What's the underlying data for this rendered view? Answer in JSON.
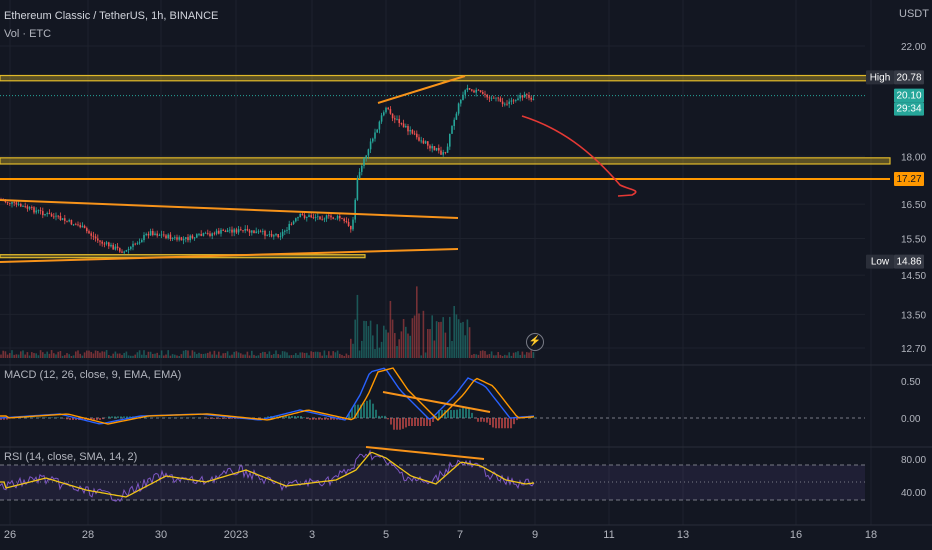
{
  "header": {
    "title": "Ethereum Classic / TetherUS, 1h, BINANCE",
    "volume_label": "Vol · ETC",
    "currency": "USDT"
  },
  "badges": {
    "high_label": "High",
    "high_value": "20.78",
    "last_value": "20.10",
    "countdown": "29:34",
    "level_value": "17.27",
    "low_label": "Low",
    "low_value": "14.86"
  },
  "colors": {
    "background": "#131722",
    "up": "#26a69a",
    "down": "#ef5350",
    "zone": "#e0b92a",
    "trendline": "#f7931a",
    "macd_line": "#2962ff",
    "signal_line": "#ff9800",
    "rsi_line": "#7e57c2",
    "rsi_ma": "#f0c419",
    "arrow": "#e53935"
  },
  "chart_data": [
    {
      "type": "candlestick",
      "title": "Ethereum Classic / TetherUS, 1h, BINANCE",
      "x_ticks": [
        "26",
        "28",
        "30",
        "2023",
        "3",
        "5",
        "7",
        "9",
        "11",
        "13",
        "16",
        "18"
      ],
      "y_ticks": [
        "22.00",
        "18.00",
        "16.50",
        "15.50",
        "14.50",
        "13.50",
        "12.70"
      ],
      "y_scale": "log",
      "high": 20.78,
      "last": 20.1,
      "low": 14.86,
      "horizontal_levels": [
        17.27
      ],
      "zones": [
        [
          20.65,
          20.85
        ],
        [
          17.75,
          17.95
        ],
        [
          14.98,
          15.05
        ]
      ],
      "indicator": "Vol · ETC"
    },
    {
      "type": "line",
      "title": "MACD (12, 26, close, 9, EMA, EMA)",
      "y_ticks": [
        "0.50",
        "0.00"
      ]
    },
    {
      "type": "line",
      "title": "RSI (14, close, SMA, 14, 2)",
      "y_ticks": [
        "80.00",
        "40.00"
      ],
      "bands": [
        70,
        30
      ]
    }
  ],
  "panes": {
    "macd_title": "MACD (12, 26, close, 9, EMA, EMA)",
    "rsi_title": "RSI (14, close, SMA, 14, 2)"
  }
}
